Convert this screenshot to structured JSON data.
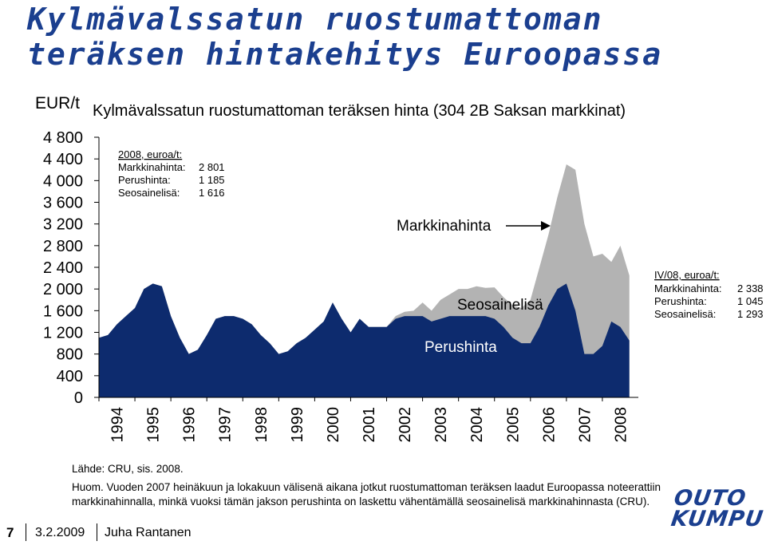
{
  "page": {
    "title_line1": "Kylmävalssatun ruostumattoman",
    "title_line2": "teräksen hintakehitys Euroopassa"
  },
  "chart_data": {
    "type": "area",
    "title": "Kylmävalssatun ruostumattoman teräksen hinta (304 2B Saksan markkinat)",
    "ylabel": "EUR/t",
    "ylim": [
      0,
      4800
    ],
    "yticks": [
      "0",
      "400",
      "800",
      "1 200",
      "1 600",
      "2 000",
      "2 400",
      "2 800",
      "3 200",
      "3 600",
      "4 000",
      "4 400",
      "4 800"
    ],
    "xlim": [
      1994,
      2009
    ],
    "xticks": [
      "1994",
      "1995",
      "1996",
      "1997",
      "1998",
      "1999",
      "2000",
      "2001",
      "2002",
      "2003",
      "2004",
      "2005",
      "2006",
      "2007",
      "2008"
    ],
    "x": [
      1994.0,
      1994.25,
      1994.5,
      1994.75,
      1995.0,
      1995.25,
      1995.5,
      1995.75,
      1996.0,
      1996.25,
      1996.5,
      1996.75,
      1997.0,
      1997.25,
      1997.5,
      1997.75,
      1998.0,
      1998.25,
      1998.5,
      1998.75,
      1999.0,
      1999.25,
      1999.5,
      1999.75,
      2000.0,
      2000.25,
      2000.5,
      2000.75,
      2001.0,
      2001.25,
      2001.5,
      2001.75,
      2002.0,
      2002.25,
      2002.5,
      2002.75,
      2003.0,
      2003.25,
      2003.5,
      2003.75,
      2004.0,
      2004.25,
      2004.5,
      2004.75,
      2005.0,
      2005.25,
      2005.5,
      2005.75,
      2006.0,
      2006.25,
      2006.5,
      2006.75,
      2007.0,
      2007.25,
      2007.5,
      2007.75,
      2008.0,
      2008.25,
      2008.5,
      2008.75
    ],
    "series": [
      {
        "name": "Perushinta",
        "color": "#0d2b6e",
        "values": [
          1100,
          1150,
          1350,
          1500,
          1650,
          2000,
          2100,
          2050,
          1500,
          1100,
          800,
          880,
          1150,
          1450,
          1500,
          1500,
          1450,
          1350,
          1150,
          1000,
          800,
          850,
          1000,
          1100,
          1250,
          1400,
          1750,
          1450,
          1200,
          1450,
          1300,
          1300,
          1300,
          1450,
          1500,
          1500,
          1500,
          1400,
          1450,
          1500,
          1500,
          1500,
          1500,
          1500,
          1450,
          1300,
          1100,
          1000,
          1000,
          1300,
          1700,
          2000,
          2100,
          1600,
          800,
          800,
          950,
          1400,
          1300,
          1050
        ]
      },
      {
        "name": "Seosainelisä",
        "color": "#b3b3b3",
        "values": [
          0,
          0,
          0,
          0,
          0,
          0,
          0,
          0,
          0,
          0,
          0,
          0,
          0,
          0,
          0,
          0,
          0,
          0,
          0,
          0,
          0,
          0,
          0,
          0,
          0,
          0,
          0,
          0,
          0,
          0,
          0,
          0,
          0,
          50,
          80,
          100,
          250,
          200,
          350,
          400,
          500,
          500,
          550,
          520,
          580,
          550,
          600,
          650,
          800,
          1100,
          1300,
          1700,
          2200,
          2600,
          2400,
          1800,
          1700,
          1100,
          1500,
          1200
        ]
      }
    ],
    "annotations": {
      "box_2008_title": "2008, euroa/t:",
      "box_2008_rows": [
        {
          "label": "Markkinahinta:",
          "value": "2 801"
        },
        {
          "label": "Perushinta:",
          "value": "1 185"
        },
        {
          "label": "Seosainelisä:",
          "value": "1 616"
        }
      ],
      "box_q4_title": "IV/08, euroa/t:",
      "box_q4_rows": [
        {
          "label": "Markkinahinta:",
          "value": "2 338"
        },
        {
          "label": "Perushinta:",
          "value": "1 045"
        },
        {
          "label": "Seosainelisä:",
          "value": "1 293"
        }
      ],
      "label_market": "Markkinahinta",
      "label_alloy": "Seosainelisä",
      "label_base": "Perushinta"
    }
  },
  "notes": {
    "source": "Lähde: CRU, sis. 2008.",
    "remark_line1": "Huom. Vuoden 2007 heinäkuun ja lokakuun välisenä aikana jotkut ruostumattoman teräksen laadut Euroopassa noteerattiin",
    "remark_line2": "markkinahinnalla, minkä vuoksi tämän jakson perushinta on laskettu vähentämällä seosainelisä markkinahinnasta (CRU)."
  },
  "footer": {
    "page_number": "7",
    "date": "3.2.2009",
    "author": "Juha Rantanen"
  },
  "logo": {
    "line1": "OUTO",
    "line2": "KUMPU"
  },
  "colors": {
    "title": "#1b3f8f",
    "base_price": "#0d2b6e",
    "alloy_surcharge": "#b3b3b3"
  }
}
